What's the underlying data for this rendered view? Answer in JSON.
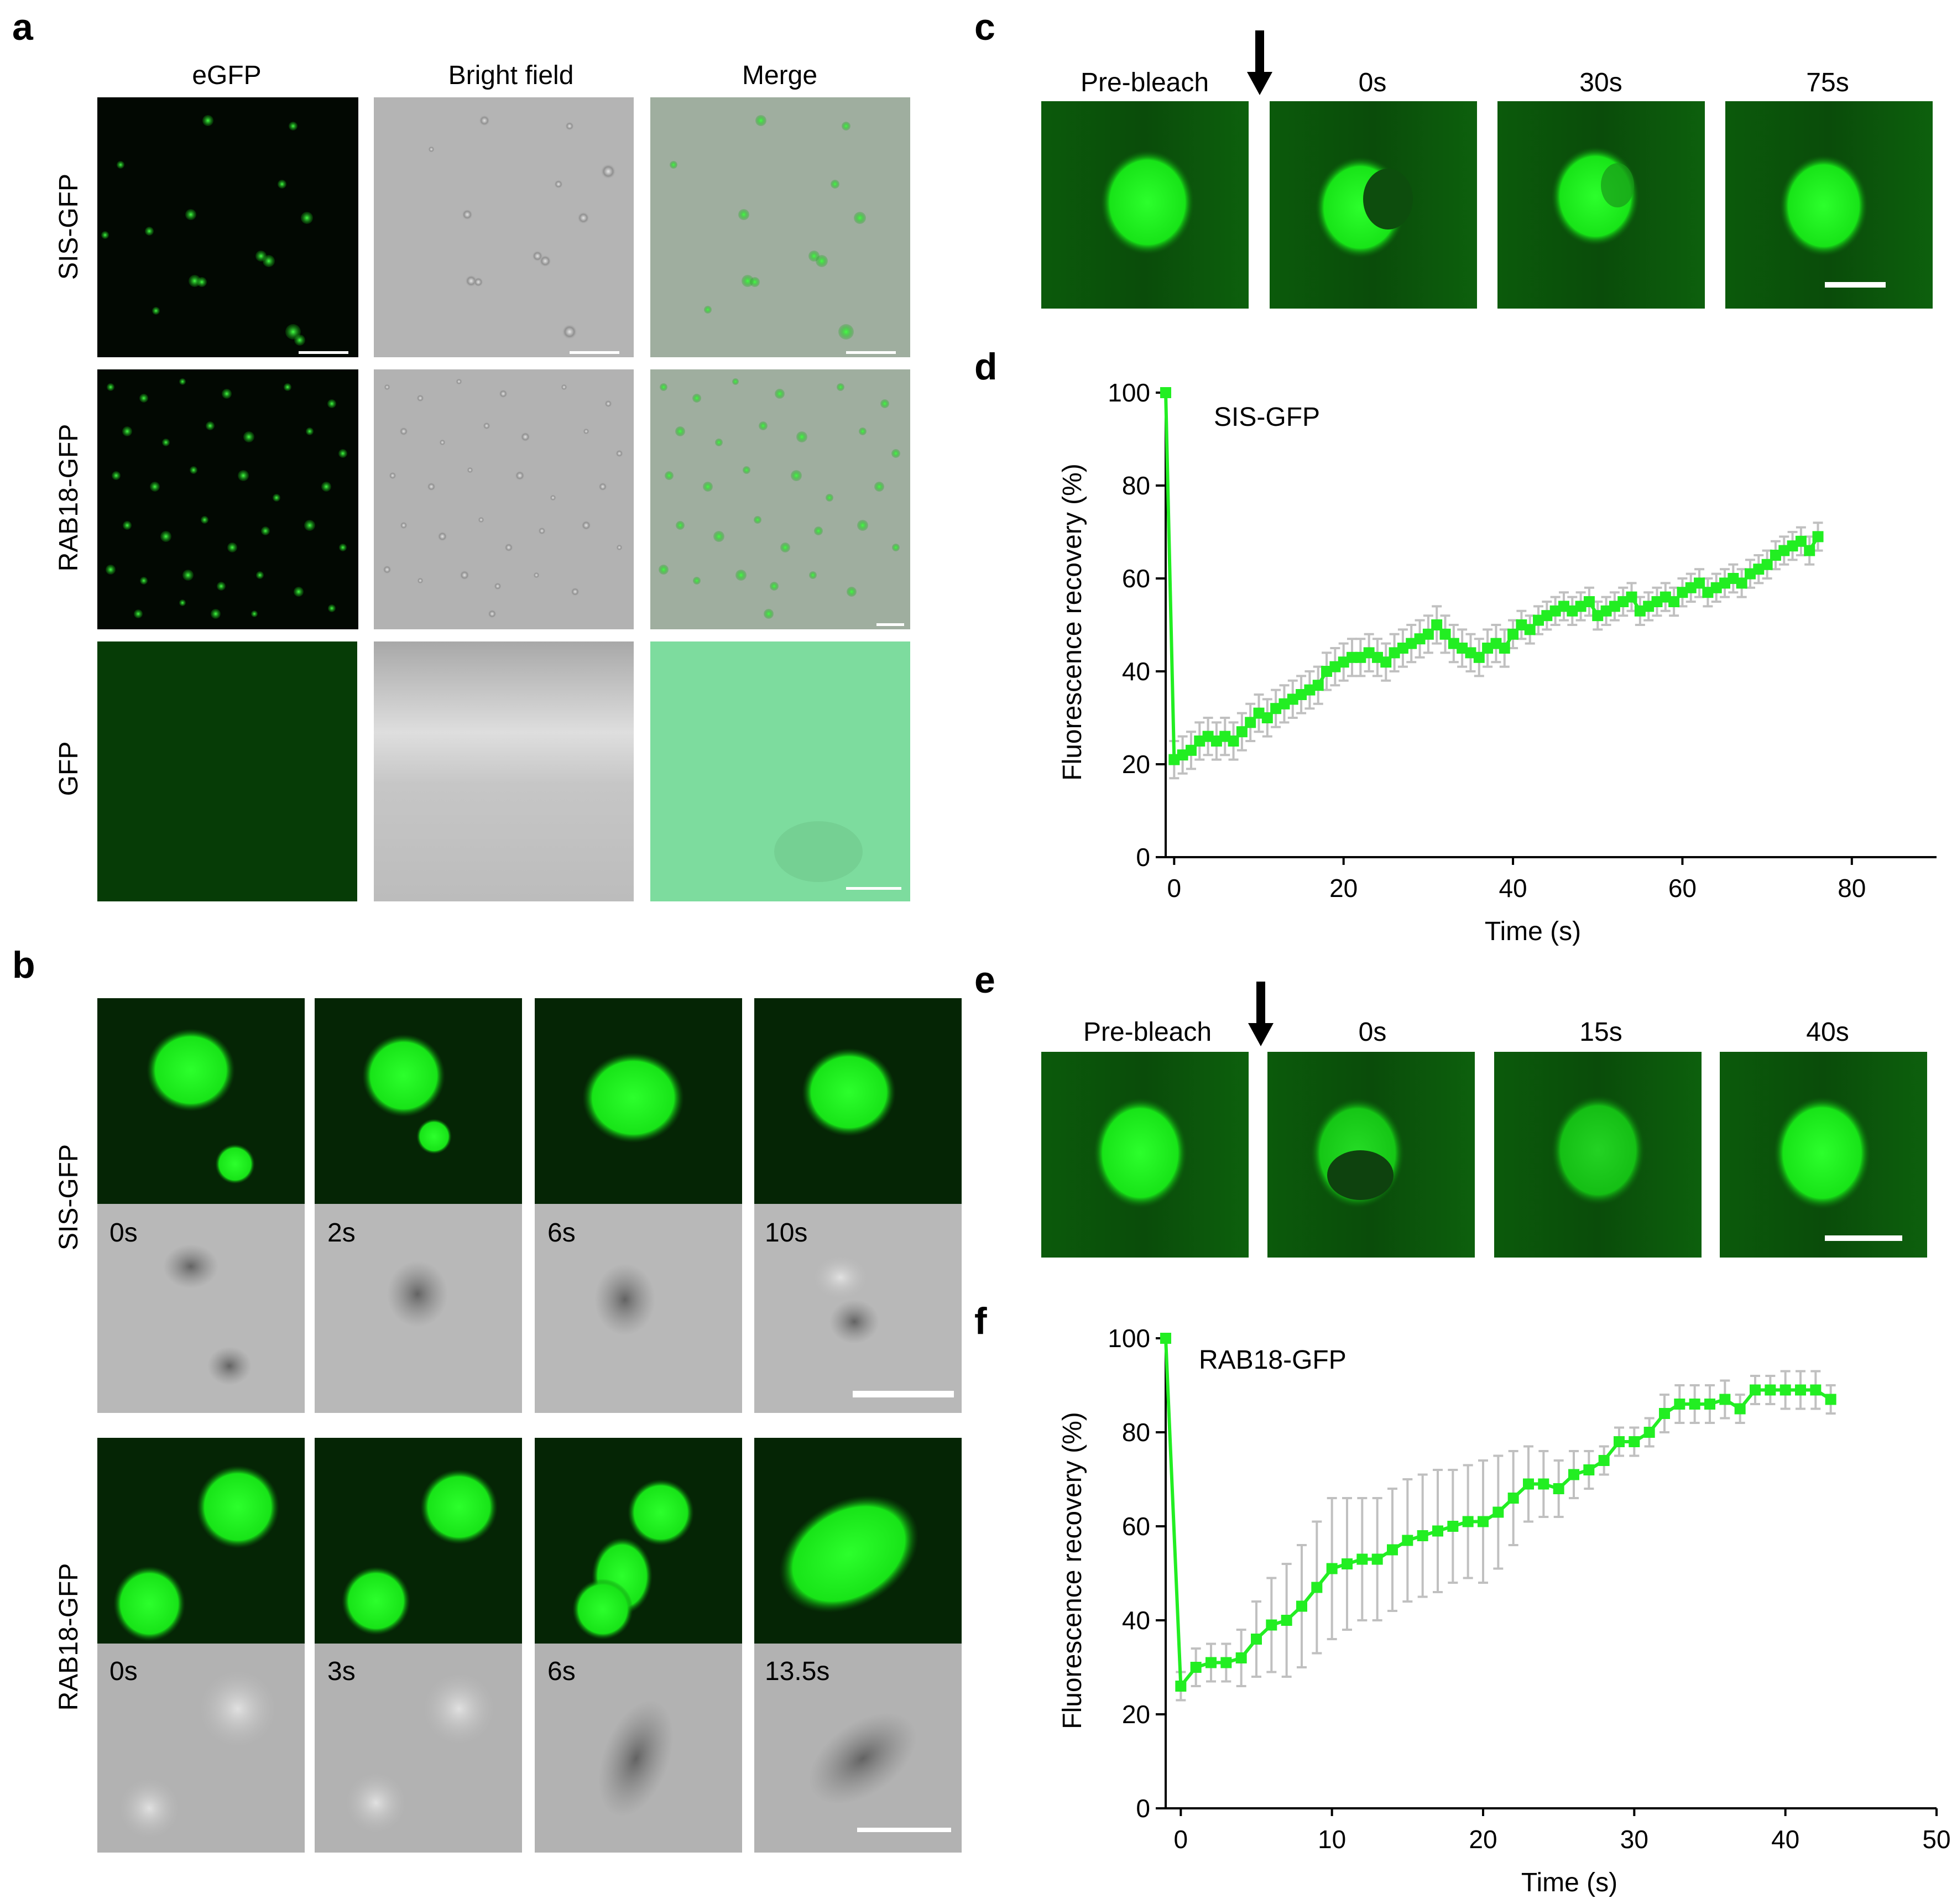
{
  "panel_letters": {
    "a": "a",
    "b": "b",
    "c": "c",
    "d": "d",
    "e": "e",
    "f": "f"
  },
  "panel_a": {
    "column_headers": [
      "eGFP",
      "Bright field",
      "Merge"
    ],
    "row_labels": [
      "SIS-GFP",
      "RAB18-GFP",
      "GFP"
    ]
  },
  "panel_b": {
    "row_labels": [
      "SIS-GFP",
      "RAB18-GFP"
    ],
    "sis_times": [
      "0s",
      "2s",
      "6s",
      "10s"
    ],
    "rab_times": [
      "0s",
      "3s",
      "6s",
      "13.5s"
    ]
  },
  "panel_c": {
    "labels": [
      "Pre-bleach",
      "0s",
      "30s",
      "75s"
    ]
  },
  "panel_e": {
    "labels": [
      "Pre-bleach",
      "0s",
      "15s",
      "40s"
    ]
  },
  "colors": {
    "gfp": "#22ee22",
    "error_bars": "#c0c0c0",
    "dark_green": "#0a3d0a"
  },
  "chart_data": [
    {
      "type": "line",
      "title": "SIS-GFP",
      "xlabel": "Time (s)",
      "ylabel": "Fluorescence recovery (%)",
      "xlim": [
        -1,
        90
      ],
      "ylim": [
        0,
        100
      ],
      "xticks": [
        0,
        20,
        40,
        60,
        80
      ],
      "yticks": [
        0,
        20,
        40,
        60,
        80,
        100
      ],
      "series": [
        {
          "x": [
            -1,
            0,
            1,
            2,
            3,
            4,
            5,
            6,
            7,
            8,
            9,
            10,
            11,
            12,
            13,
            14,
            15,
            16,
            17,
            18,
            19,
            20,
            21,
            22,
            23,
            24,
            25,
            26,
            27,
            28,
            29,
            30,
            31,
            32,
            33,
            34,
            35,
            36,
            37,
            38,
            39,
            40,
            41,
            42,
            43,
            44,
            45,
            46,
            47,
            48,
            49,
            50,
            51,
            52,
            53,
            54,
            55,
            56,
            57,
            58,
            59,
            60,
            61,
            62,
            63,
            64,
            65,
            66,
            67,
            68,
            69,
            70,
            71,
            72,
            73,
            74,
            75,
            76
          ],
          "y": [
            100,
            21,
            22,
            23,
            25,
            26,
            25,
            26,
            25,
            27,
            29,
            31,
            30,
            32,
            33,
            34,
            35,
            36,
            37,
            40,
            41,
            42,
            43,
            43,
            44,
            43,
            42,
            44,
            45,
            46,
            47,
            48,
            50,
            48,
            46,
            45,
            44,
            43,
            45,
            46,
            45,
            48,
            50,
            49,
            51,
            52,
            53,
            54,
            53,
            54,
            55,
            52,
            53,
            54,
            55,
            56,
            53,
            54,
            55,
            56,
            55,
            57,
            58,
            59,
            57,
            58,
            59,
            60,
            59,
            61,
            62,
            63,
            65,
            66,
            67,
            68,
            66,
            69
          ],
          "err": [
            0,
            4,
            4,
            4,
            4,
            4,
            4,
            4,
            4,
            4,
            4,
            4,
            4,
            4,
            4,
            4,
            4,
            4,
            4,
            4,
            4,
            4,
            4,
            4,
            4,
            4,
            4,
            4,
            4,
            4,
            4,
            4,
            4,
            4,
            4,
            4,
            4,
            4,
            4,
            4,
            4,
            3,
            3,
            3,
            3,
            3,
            3,
            3,
            3,
            3,
            3,
            3,
            3,
            3,
            3,
            3,
            3,
            3,
            3,
            3,
            3,
            3,
            3,
            3,
            3,
            3,
            3,
            3,
            3,
            3,
            3,
            3,
            3,
            3,
            3,
            3,
            3,
            3
          ]
        }
      ]
    },
    {
      "type": "line",
      "title": "RAB18-GFP",
      "xlabel": "Time (s)",
      "ylabel": "Fluorescence recovery (%)",
      "xlim": [
        -1,
        50
      ],
      "ylim": [
        0,
        100
      ],
      "xticks": [
        0,
        10,
        20,
        30,
        40,
        50
      ],
      "yticks": [
        0,
        20,
        40,
        60,
        80,
        100
      ],
      "series": [
        {
          "x": [
            -1,
            0,
            1,
            2,
            3,
            4,
            5,
            6,
            7,
            8,
            9,
            10,
            11,
            12,
            13,
            14,
            15,
            16,
            17,
            18,
            19,
            20,
            21,
            22,
            23,
            24,
            25,
            26,
            27,
            28,
            29,
            30,
            31,
            32,
            33,
            34,
            35,
            36,
            37,
            38,
            39,
            40,
            41,
            42,
            43
          ],
          "y": [
            100,
            26,
            30,
            31,
            31,
            32,
            36,
            39,
            40,
            43,
            47,
            51,
            52,
            53,
            53,
            55,
            57,
            58,
            59,
            60,
            61,
            61,
            63,
            66,
            69,
            69,
            68,
            71,
            72,
            74,
            78,
            78,
            80,
            84,
            86,
            86,
            86,
            87,
            85,
            89,
            89,
            89,
            89,
            89,
            87
          ],
          "err": [
            0,
            3,
            4,
            4,
            4,
            6,
            8,
            10,
            12,
            13,
            14,
            15,
            14,
            13,
            13,
            13,
            13,
            13,
            13,
            12,
            12,
            13,
            12,
            10,
            8,
            7,
            6,
            5,
            4,
            3,
            3,
            3,
            3,
            4,
            4,
            4,
            4,
            4,
            3,
            3,
            3,
            4,
            4,
            4,
            3
          ]
        }
      ]
    }
  ]
}
